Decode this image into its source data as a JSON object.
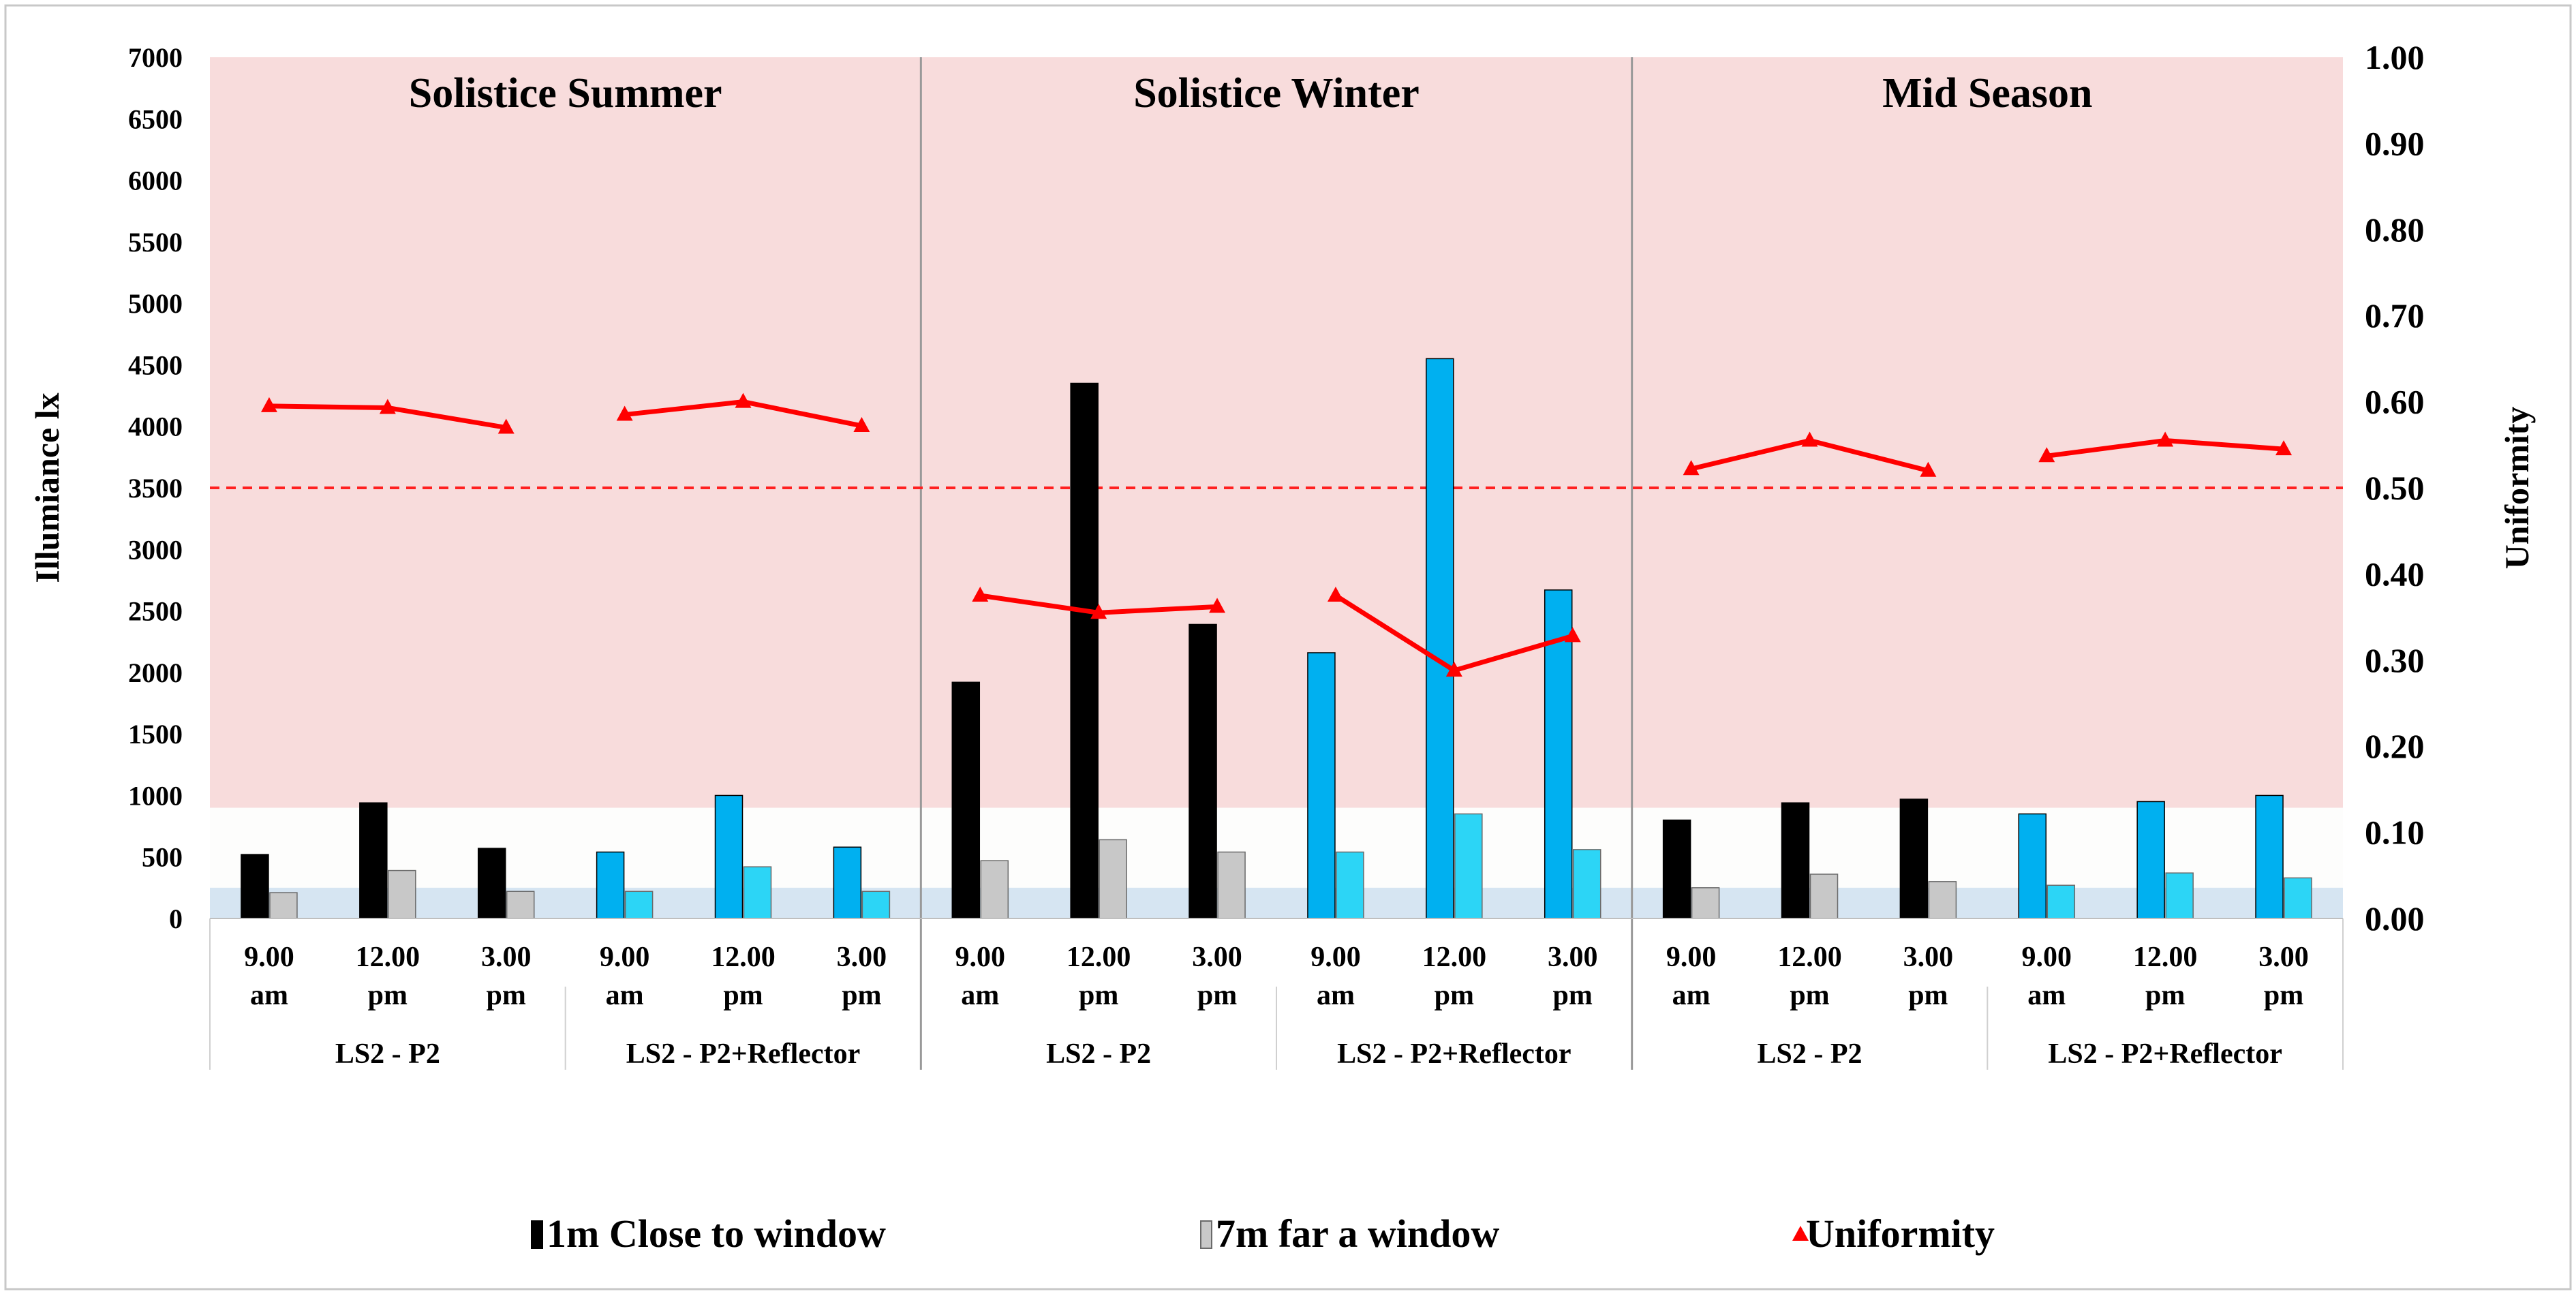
{
  "chart_data": {
    "type": "bar",
    "y_left": {
      "label": "Illumiance lx",
      "range": [
        0,
        7000
      ],
      "step": 500,
      "tick_labels": [
        "0",
        "500",
        "1000",
        "1500",
        "2000",
        "2500",
        "3000",
        "3500",
        "4000",
        "4500",
        "5000",
        "5500",
        "6000",
        "6500",
        "7000"
      ]
    },
    "y_right": {
      "label": "Uniformity",
      "range": [
        0,
        1
      ],
      "step": 0.1,
      "tick_labels": [
        "0.00",
        "0.10",
        "0.20",
        "0.30",
        "0.40",
        "0.50",
        "0.60",
        "0.70",
        "0.80",
        "0.90",
        "1.00"
      ]
    },
    "zones": [
      {
        "name": "high-zone",
        "from": 900,
        "to": 7000,
        "color": "#f8dcdc"
      },
      {
        "name": "mid-zone",
        "from": 250,
        "to": 900,
        "color": "#fdfdfc"
      },
      {
        "name": "low-zone",
        "from": 0,
        "to": 250,
        "color": "#d6e5f2"
      }
    ],
    "threshold": {
      "uniformity": 0.5,
      "color": "#ff2020"
    },
    "time_labels": [
      [
        "9.00",
        "am"
      ],
      [
        "12.00",
        "pm"
      ],
      [
        "3.00",
        "pm"
      ]
    ],
    "seasons": [
      {
        "title": "Solistice Summer",
        "groups": [
          {
            "label": "LS2 - P2",
            "reflector": false,
            "close": [
              520,
              940,
              570
            ],
            "far": [
              210,
              390,
              220
            ],
            "uniformity": [
              0.595,
              0.593,
              0.57
            ]
          },
          {
            "label": "LS2 - P2+Reflector",
            "reflector": true,
            "close": [
              540,
              1000,
              580
            ],
            "far": [
              220,
              420,
              220
            ],
            "uniformity": [
              0.585,
              0.6,
              0.572
            ]
          }
        ]
      },
      {
        "title": "Solistice Winter",
        "groups": [
          {
            "label": "LS2 - P2",
            "reflector": false,
            "close": [
              1920,
              4350,
              2390
            ],
            "far": [
              470,
              640,
              540
            ],
            "uniformity": [
              0.375,
              0.355,
              0.362
            ]
          },
          {
            "label": "LS2 - P2+Reflector",
            "reflector": true,
            "close": [
              2160,
              4550,
              2670
            ],
            "far": [
              540,
              850,
              560
            ],
            "uniformity": [
              0.375,
              0.288,
              0.328
            ]
          }
        ]
      },
      {
        "title": "Mid Season",
        "groups": [
          {
            "label": "LS2 - P2",
            "reflector": false,
            "close": [
              800,
              940,
              970
            ],
            "far": [
              250,
              360,
              300
            ],
            "uniformity": [
              0.522,
              0.555,
              0.52
            ]
          },
          {
            "label": "LS2 - P2+Reflector",
            "reflector": true,
            "close": [
              850,
              950,
              1000
            ],
            "far": [
              270,
              370,
              330
            ],
            "uniformity": [
              0.537,
              0.555,
              0.545
            ]
          }
        ]
      }
    ],
    "legend": [
      {
        "key": "close",
        "label": "1m Close to window",
        "color": "#000000"
      },
      {
        "key": "far",
        "label": "7m far a window",
        "color": "#c8c8c8"
      },
      {
        "key": "uniformity",
        "label": "Uniformity",
        "color": "#ff0000"
      }
    ],
    "colors": {
      "close_default": "#000000",
      "far_default": "#c8c8c8",
      "close_reflector": "#00b0f0",
      "far_reflector": "#2cd5f6",
      "uniformity": "#ff0000",
      "divider": "#999999"
    }
  }
}
